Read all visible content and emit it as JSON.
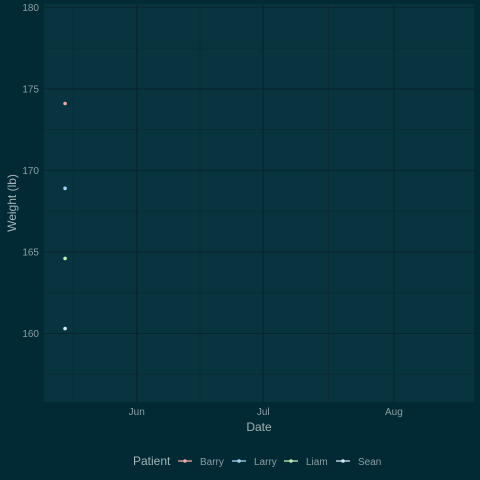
{
  "chart_data": {
    "type": "scatter",
    "xlabel": "Date",
    "ylabel": "Weight (lb)",
    "x_range": [
      "2021-05-10",
      "2021-08-20"
    ],
    "ylim": [
      155.8,
      180.2
    ],
    "y_ticks": [
      160,
      165,
      170,
      175,
      180
    ],
    "x_ticks": [
      {
        "date": "2021-06-01",
        "label": "Jun"
      },
      {
        "date": "2021-07-01",
        "label": "Jul"
      },
      {
        "date": "2021-08-01",
        "label": "Aug"
      }
    ],
    "grid": true,
    "legend": {
      "title": "Patient",
      "placement": "bottom"
    },
    "series": [
      {
        "name": "Barry",
        "color": "#f4a7a0",
        "points": [
          {
            "x": "2021-05-15",
            "y": 174.1
          }
        ]
      },
      {
        "name": "Larry",
        "color": "#9fd3f0",
        "points": [
          {
            "x": "2021-05-15",
            "y": 168.9
          }
        ]
      },
      {
        "name": "Liam",
        "color": "#b8f0b0",
        "points": [
          {
            "x": "2021-05-15",
            "y": 164.6
          }
        ]
      },
      {
        "name": "Sean",
        "color": "#cfe6ff",
        "points": [
          {
            "x": "2021-05-15",
            "y": 160.3
          }
        ]
      }
    ]
  }
}
